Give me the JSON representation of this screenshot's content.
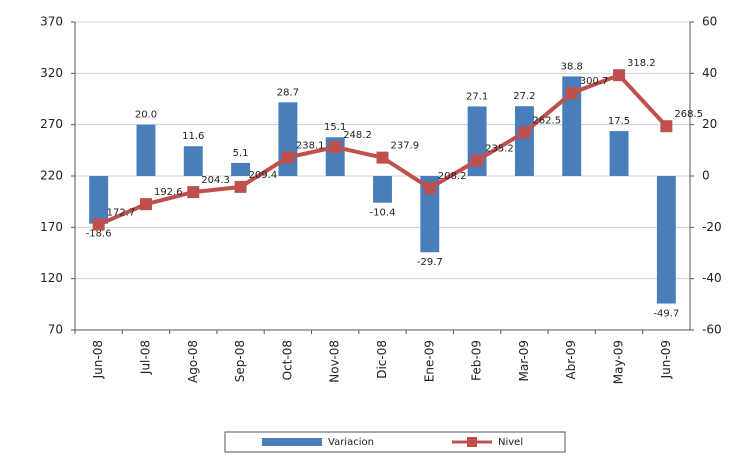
{
  "chart_data": {
    "type": "bar",
    "categories": [
      "Jun-08",
      "Jul-08",
      "Ago-08",
      "Sep-08",
      "Oct-08",
      "Nov-08",
      "Dic-08",
      "Ene-09",
      "Feb-09",
      "Mar-09",
      "Abr-09",
      "May-09",
      "Jun-09"
    ],
    "series": [
      {
        "name": "Variacion",
        "type": "bar",
        "axis": "y2",
        "color": "#4a7ebb",
        "values": [
          -18.6,
          20.0,
          11.6,
          5.1,
          28.7,
          15.1,
          -10.4,
          -29.7,
          27.1,
          27.2,
          38.8,
          17.5,
          -49.7
        ],
        "value_labels": [
          "-18.6",
          "20.0",
          "11.6",
          "5.1",
          "28.7",
          "15.1",
          "-10.4",
          "-29.7",
          "27.1",
          "27.2",
          "38.8",
          "17.5",
          "-49.7"
        ]
      },
      {
        "name": "Nivel",
        "type": "line",
        "axis": "y",
        "color": "#c0504d",
        "values": [
          172.7,
          192.6,
          204.3,
          209.4,
          238.1,
          248.2,
          237.9,
          208.2,
          235.2,
          262.5,
          300.7,
          318.2,
          268.5
        ]
      }
    ],
    "ylim": [
      70,
      370
    ],
    "yticks": [
      70,
      120,
      170,
      220,
      270,
      320,
      370
    ],
    "y2lim": [
      -60,
      60
    ],
    "y2ticks": [
      -60,
      -40,
      -20,
      0,
      20,
      40,
      60
    ],
    "grid": true,
    "legend": "bottom"
  }
}
